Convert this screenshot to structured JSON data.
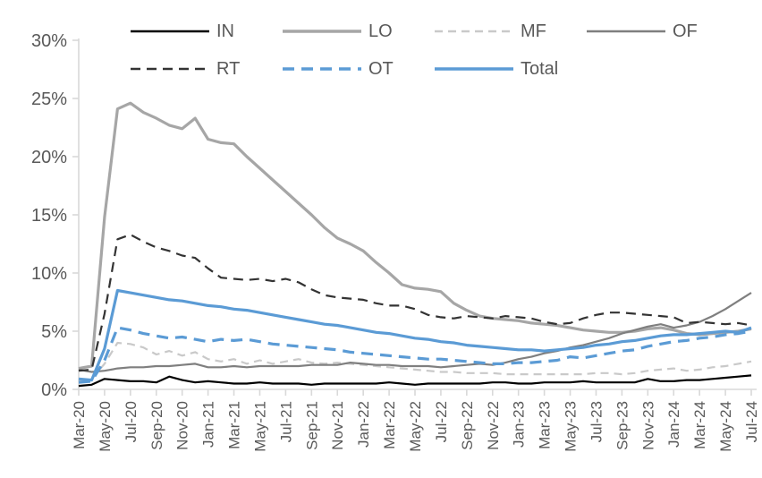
{
  "chart_data": {
    "type": "line",
    "title": "",
    "xlabel": "",
    "ylabel": "",
    "ylim": [
      0,
      30
    ],
    "y_tick_labels": [
      "0%",
      "5%",
      "10%",
      "15%",
      "20%",
      "25%",
      "30%"
    ],
    "x_tick_every": 2,
    "grid": "off",
    "legend_position": "top",
    "axis_color": "#D9D9D9",
    "text_color": "#595959",
    "categories": [
      "Mar-20",
      "Apr-20",
      "May-20",
      "Jun-20",
      "Jul-20",
      "Aug-20",
      "Sep-20",
      "Oct-20",
      "Nov-20",
      "Dec-20",
      "Jan-21",
      "Feb-21",
      "Mar-21",
      "Apr-21",
      "May-21",
      "Jun-21",
      "Jul-21",
      "Aug-21",
      "Sep-21",
      "Oct-21",
      "Nov-21",
      "Dec-21",
      "Jan-22",
      "Feb-22",
      "Mar-22",
      "Apr-22",
      "May-22",
      "Jun-22",
      "Jul-22",
      "Aug-22",
      "Sep-22",
      "Oct-22",
      "Nov-22",
      "Dec-22",
      "Jan-23",
      "Feb-23",
      "Mar-23",
      "Apr-23",
      "May-23",
      "Jun-23",
      "Jul-23",
      "Aug-23",
      "Sep-23",
      "Oct-23",
      "Nov-23",
      "Dec-23",
      "Jan-24",
      "Feb-24",
      "Mar-24",
      "Apr-24",
      "May-24",
      "Jun-24",
      "Jul-24"
    ],
    "visible_x_tick_labels": [
      "Mar-20",
      "May-20",
      "Jul-20",
      "Sep-20",
      "Nov-20",
      "Jan-21",
      "Mar-21",
      "May-21",
      "Jul-21",
      "Sep-21",
      "Nov-21",
      "Jan-22",
      "Mar-22",
      "May-22",
      "Jul-22",
      "Sep-22",
      "Nov-22",
      "Jan-23",
      "Mar-23",
      "May-23",
      "Jul-23",
      "Sep-23",
      "Nov-23",
      "Jan-24",
      "Mar-24",
      "May-24",
      "Jul-24"
    ],
    "series": [
      {
        "name": "IN",
        "color": "#000000",
        "style": "solid",
        "width": 2.2,
        "values": [
          0.3,
          0.4,
          0.9,
          0.8,
          0.7,
          0.7,
          0.6,
          1.1,
          0.8,
          0.6,
          0.7,
          0.6,
          0.5,
          0.5,
          0.6,
          0.5,
          0.5,
          0.5,
          0.4,
          0.5,
          0.5,
          0.5,
          0.5,
          0.5,
          0.6,
          0.5,
          0.4,
          0.5,
          0.5,
          0.5,
          0.5,
          0.5,
          0.6,
          0.6,
          0.5,
          0.5,
          0.6,
          0.6,
          0.6,
          0.7,
          0.6,
          0.6,
          0.6,
          0.6,
          0.9,
          0.7,
          0.7,
          0.8,
          0.8,
          0.9,
          1.0,
          1.1,
          1.2
        ]
      },
      {
        "name": "LO",
        "color": "#A6A6A6",
        "style": "solid",
        "width": 3.2,
        "values": [
          1.8,
          2.0,
          14.8,
          24.1,
          24.6,
          23.8,
          23.3,
          22.7,
          22.4,
          23.3,
          21.5,
          21.2,
          21.1,
          20.0,
          19.0,
          18.0,
          17.0,
          16.0,
          15.0,
          13.9,
          13.0,
          12.5,
          11.9,
          10.9,
          10.0,
          9.0,
          8.7,
          8.6,
          8.4,
          7.4,
          6.8,
          6.3,
          6.1,
          6.0,
          5.9,
          5.7,
          5.6,
          5.5,
          5.3,
          5.1,
          5.0,
          4.9,
          4.9,
          5.0,
          5.2,
          5.3,
          5.1,
          4.8,
          4.7,
          4.8,
          4.9,
          5.0,
          5.2
        ]
      },
      {
        "name": "MF",
        "color": "#C9C9C9",
        "style": "dashed",
        "width": 2.2,
        "values": [
          0.8,
          0.9,
          2.2,
          4.0,
          3.9,
          3.6,
          3.0,
          3.3,
          2.9,
          3.2,
          2.6,
          2.4,
          2.6,
          2.2,
          2.5,
          2.2,
          2.4,
          2.6,
          2.3,
          2.2,
          2.3,
          2.2,
          2.1,
          2.0,
          1.9,
          1.8,
          1.7,
          1.6,
          1.5,
          1.5,
          1.4,
          1.4,
          1.4,
          1.3,
          1.3,
          1.3,
          1.3,
          1.3,
          1.3,
          1.3,
          1.4,
          1.4,
          1.3,
          1.4,
          1.6,
          1.7,
          1.8,
          1.6,
          1.7,
          1.9,
          2.0,
          2.2,
          2.4
        ]
      },
      {
        "name": "OF",
        "color": "#7F7F7F",
        "style": "solid",
        "width": 2.2,
        "values": [
          1.7,
          1.5,
          1.6,
          1.8,
          1.9,
          1.9,
          2.0,
          2.0,
          2.1,
          2.2,
          1.9,
          1.9,
          2.0,
          1.9,
          2.0,
          2.0,
          2.0,
          2.0,
          2.1,
          2.1,
          2.1,
          2.3,
          2.2,
          2.1,
          2.1,
          2.0,
          2.0,
          2.0,
          1.9,
          2.0,
          2.1,
          2.2,
          2.1,
          2.3,
          2.6,
          2.8,
          3.1,
          3.3,
          3.6,
          3.8,
          4.1,
          4.4,
          4.8,
          5.1,
          5.4,
          5.6,
          5.3,
          5.5,
          5.8,
          6.3,
          6.9,
          7.6,
          8.3
        ]
      },
      {
        "name": "RT",
        "color": "#333333",
        "style": "dashed",
        "width": 2.2,
        "values": [
          1.6,
          1.7,
          6.5,
          12.9,
          13.3,
          12.7,
          12.2,
          11.9,
          11.5,
          11.3,
          10.4,
          9.6,
          9.5,
          9.4,
          9.5,
          9.3,
          9.5,
          9.2,
          8.6,
          8.1,
          7.9,
          7.8,
          7.7,
          7.4,
          7.2,
          7.2,
          6.9,
          6.4,
          6.2,
          6.1,
          6.3,
          6.2,
          6.1,
          6.3,
          6.2,
          6.1,
          5.8,
          5.6,
          5.7,
          6.1,
          6.4,
          6.6,
          6.6,
          6.5,
          6.4,
          6.3,
          6.2,
          5.7,
          5.8,
          5.7,
          5.6,
          5.7,
          5.5
        ]
      },
      {
        "name": "OT",
        "color": "#5B9BD5",
        "style": "dashed",
        "width": 3.2,
        "values": [
          0.6,
          0.7,
          2.5,
          5.3,
          5.1,
          4.8,
          4.6,
          4.4,
          4.5,
          4.3,
          4.1,
          4.3,
          4.2,
          4.3,
          4.1,
          3.9,
          3.8,
          3.7,
          3.6,
          3.5,
          3.4,
          3.2,
          3.1,
          3.0,
          2.9,
          2.8,
          2.7,
          2.6,
          2.6,
          2.5,
          2.4,
          2.3,
          2.2,
          2.2,
          2.3,
          2.3,
          2.4,
          2.5,
          2.8,
          2.7,
          2.9,
          3.1,
          3.3,
          3.4,
          3.7,
          3.9,
          4.1,
          4.2,
          4.4,
          4.5,
          4.7,
          4.8,
          5.0
        ]
      },
      {
        "name": "Total",
        "color": "#5B9BD5",
        "style": "solid",
        "width": 3.2,
        "values": [
          0.9,
          0.8,
          3.5,
          8.5,
          8.3,
          8.1,
          7.9,
          7.7,
          7.6,
          7.4,
          7.2,
          7.1,
          6.9,
          6.8,
          6.6,
          6.4,
          6.2,
          6.0,
          5.8,
          5.6,
          5.5,
          5.3,
          5.1,
          4.9,
          4.8,
          4.6,
          4.4,
          4.3,
          4.1,
          4.0,
          3.8,
          3.7,
          3.6,
          3.5,
          3.4,
          3.4,
          3.3,
          3.4,
          3.5,
          3.6,
          3.8,
          3.9,
          4.1,
          4.2,
          4.4,
          4.6,
          4.7,
          4.7,
          4.8,
          4.9,
          5.0,
          4.9,
          5.3
        ]
      }
    ]
  }
}
